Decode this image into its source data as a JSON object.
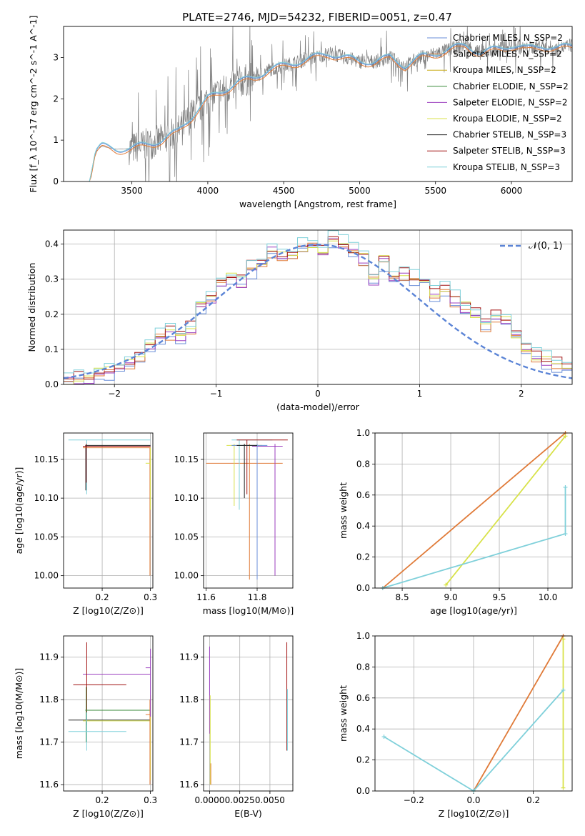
{
  "figure": {
    "title": "PLATE=2746, MJD=54232, FIBERID=0051, z=0.47"
  },
  "colors": {
    "Chabrier MILES": "#6a8ed8",
    "Salpeter MILES": "#e07b39",
    "Kroupa MILES": "#c8aa14",
    "Chabrier ELODIE": "#3a8a3a",
    "Salpeter ELODIE": "#9b3fbf",
    "Kroupa ELODIE": "#d8e24a",
    "Chabrier STELIB": "#222222",
    "Salpeter STELIB": "#a11010",
    "Kroupa STELIB": "#7fd0da",
    "data": "#808080",
    "gaussian": "#5b84d6",
    "grid": "#b0b0b0"
  },
  "chart_data": [
    {
      "id": "spectrum",
      "type": "line",
      "title": "PLATE=2746, MJD=54232, FIBERID=0051, z=0.47",
      "xlabel": "wavelength [Angstrom, rest frame]",
      "ylabel": "Flux [f_λ 10^-17 erg cm^-2 s^-1 A^-1]",
      "xlim": [
        3050,
        6400
      ],
      "ylim": [
        0,
        3.75
      ],
      "xticks": [
        3500,
        4000,
        4500,
        5000,
        5500,
        6000
      ],
      "yticks": [
        0,
        1,
        2,
        3
      ],
      "grid": false,
      "legend_position": "upper-right",
      "legend": [
        "Chabrier MILES, N_SSP=2",
        "Salpeter MILES, N_SSP=2",
        "Kroupa MILES, N_SSP=2",
        "Chabrier ELODIE, N_SSP=2",
        "Salpeter ELODIE, N_SSP=2",
        "Kroupa ELODIE, N_SSP=2",
        "Chabrier STELIB, N_SSP=3",
        "Salpeter STELIB, N_SSP=3",
        "Kroupa STELIB, N_SSP=3"
      ],
      "data_series": {
        "name": "data",
        "x": [
          3220,
          3260,
          3300,
          3400,
          3500,
          3600,
          3700,
          3800,
          3900,
          4000,
          4100,
          4200,
          4300,
          4400,
          4500,
          4600,
          4700,
          4800,
          4900,
          5000,
          5100,
          5200,
          5300,
          5400,
          5500,
          5600,
          5700,
          5800,
          5900,
          6000,
          6100,
          6200,
          6300,
          6400
        ],
        "y": [
          0,
          0.72,
          0.85,
          0.78,
          0.8,
          0.9,
          1.0,
          1.2,
          1.6,
          2.0,
          2.2,
          2.4,
          2.5,
          2.7,
          2.8,
          2.9,
          3.0,
          3.1,
          3.0,
          2.9,
          2.9,
          3.0,
          2.8,
          3.0,
          3.1,
          3.2,
          3.3,
          3.1,
          3.2,
          3.3,
          3.2,
          3.3,
          3.2,
          3.3
        ]
      },
      "model_series": [
        {
          "name": "Chabrier MILES",
          "y_offset": 0.0
        },
        {
          "name": "Salpeter MILES",
          "y_offset": -0.05
        },
        {
          "name": "Kroupa STELIB",
          "y_offset": 0.02
        }
      ]
    },
    {
      "id": "residuals",
      "type": "line",
      "xlabel": "(data-model)/error",
      "ylabel": "Normed distribution",
      "xlim": [
        -2.5,
        2.5
      ],
      "ylim": [
        0,
        0.44
      ],
      "xticks": [
        -2,
        -1,
        0,
        1,
        2
      ],
      "yticks": [
        0.0,
        0.1,
        0.2,
        0.3,
        0.4
      ],
      "grid": true,
      "legend_position": "upper-right",
      "legend": [
        "𝒩(0, 1)"
      ],
      "gaussian": {
        "mu": 0,
        "sigma": 1
      },
      "histogram_bins": [
        -2.5,
        -2.4,
        -2.3,
        -2.2,
        -2.1,
        -2.0,
        -1.9,
        -1.8,
        -1.7,
        -1.6,
        -1.5,
        -1.4,
        -1.3,
        -1.2,
        -1.1,
        -1.0,
        -0.9,
        -0.8,
        -0.7,
        -0.6,
        -0.5,
        -0.4,
        -0.3,
        -0.2,
        -0.1,
        0.0,
        0.1,
        0.2,
        0.3,
        0.4,
        0.5,
        0.6,
        0.7,
        0.8,
        0.9,
        1.0,
        1.1,
        1.2,
        1.3,
        1.4,
        1.5,
        1.6,
        1.7,
        1.8,
        1.9,
        2.0,
        2.1,
        2.2,
        2.3,
        2.4,
        2.5
      ],
      "histogram_values": [
        0.01,
        0.02,
        0.02,
        0.03,
        0.04,
        0.05,
        0.06,
        0.08,
        0.11,
        0.14,
        0.15,
        0.14,
        0.16,
        0.22,
        0.25,
        0.29,
        0.31,
        0.29,
        0.33,
        0.35,
        0.38,
        0.36,
        0.37,
        0.39,
        0.4,
        0.38,
        0.41,
        0.4,
        0.38,
        0.36,
        0.3,
        0.35,
        0.31,
        0.32,
        0.3,
        0.3,
        0.26,
        0.27,
        0.24,
        0.22,
        0.2,
        0.17,
        0.19,
        0.18,
        0.14,
        0.1,
        0.08,
        0.07,
        0.06,
        0.05
      ]
    },
    {
      "id": "age_vs_Z",
      "type": "scatter",
      "xlabel": "Z [log10(Z/Z⊙)]",
      "ylabel": "age [log10(age/yr)]",
      "xlim": [
        0.12,
        0.305
      ],
      "ylim": [
        9.984,
        10.184
      ],
      "xticks": [
        0.2,
        0.3
      ],
      "yticks": [
        10.0,
        10.05,
        10.1,
        10.15
      ],
      "grid": true
    },
    {
      "id": "age_vs_mass",
      "type": "scatter",
      "xlabel": "mass [log10(M/M⊙)]",
      "xlim": [
        11.59,
        11.94
      ],
      "ylim": [
        9.984,
        10.184
      ],
      "xticks": [
        11.6,
        11.8
      ],
      "yticks": [
        10.0,
        10.05,
        10.1,
        10.15
      ],
      "grid": true
    },
    {
      "id": "massweight_vs_age",
      "type": "line",
      "xlabel": "age [log10(age/yr)]",
      "ylabel": "mass weight",
      "xlim": [
        8.22,
        10.25
      ],
      "ylim": [
        0,
        1.0
      ],
      "xticks": [
        8.5,
        9.0,
        9.5,
        10.0
      ],
      "yticks": [
        0.0,
        0.2,
        0.4,
        0.6,
        0.8,
        1.0
      ],
      "grid": true,
      "series": [
        {
          "name": "Salpeter MILES",
          "x": [
            8.3,
            10.18
          ],
          "y": [
            0.0,
            1.0
          ]
        },
        {
          "name": "Kroupa ELODIE",
          "x": [
            8.95,
            10.18
          ],
          "y": [
            0.02,
            0.98
          ]
        },
        {
          "name": "Kroupa STELIB",
          "x": [
            8.3,
            10.18,
            10.18
          ],
          "y": [
            0.0,
            0.35,
            0.65
          ]
        }
      ]
    },
    {
      "id": "mass_vs_Z",
      "type": "scatter",
      "xlabel": "Z [log10(Z/Z⊙)]",
      "ylabel": "mass [log10(M/M⊙)]",
      "xlim": [
        0.12,
        0.305
      ],
      "ylim": [
        11.585,
        11.95
      ],
      "xticks": [
        0.2,
        0.3
      ],
      "yticks": [
        11.6,
        11.7,
        11.8,
        11.9
      ],
      "grid": true
    },
    {
      "id": "mass_vs_EBV",
      "type": "scatter",
      "xlabel": "E(B-V)",
      "xlim": [
        -0.0005,
        0.0069
      ],
      "ylim": [
        11.585,
        11.95
      ],
      "xticks": [
        0.0,
        0.0025,
        0.005
      ],
      "xticklabels": [
        "0.0000",
        "0.0025",
        "0.0050"
      ],
      "yticks": [
        11.6,
        11.7,
        11.8,
        11.9
      ],
      "grid": true
    },
    {
      "id": "massweight_vs_Z",
      "type": "line",
      "xlabel": "Z [log10(Z/Z⊙)]",
      "ylabel": "mass weight",
      "xlim": [
        -0.33,
        0.33
      ],
      "ylim": [
        0,
        1.0
      ],
      "xticks": [
        -0.2,
        0.0,
        0.2
      ],
      "yticks": [
        0.0,
        0.2,
        0.4,
        0.6,
        0.8,
        1.0
      ],
      "grid": true,
      "series": [
        {
          "name": "Salpeter MILES",
          "x": [
            0.0,
            0.3
          ],
          "y": [
            0.0,
            1.0
          ]
        },
        {
          "name": "Kroupa ELODIE",
          "x": [
            0.3,
            0.3
          ],
          "y": [
            0.02,
            0.98
          ]
        },
        {
          "name": "Kroupa STELIB",
          "x": [
            -0.3,
            0.0,
            0.3
          ],
          "y": [
            0.35,
            0.0,
            0.65
          ]
        }
      ]
    }
  ]
}
